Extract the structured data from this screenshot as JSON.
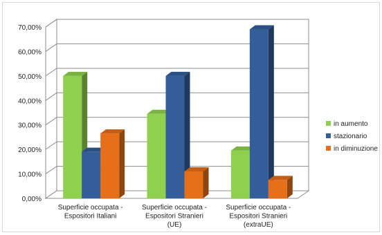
{
  "chart_data": {
    "type": "bar",
    "categories": [
      [
        "Superficie occupata -",
        "Espositori Italiani"
      ],
      [
        "Superficie occupata -",
        "Espositori Stranieri",
        "(UE)"
      ],
      [
        "Superficie occupata -",
        "Espositori Stranieri",
        "(extraUE)"
      ]
    ],
    "series": [
      {
        "name": "in aumento",
        "values": [
          50,
          34.5,
          19.5
        ],
        "color": "#8fd14f"
      },
      {
        "name": "stazionario",
        "values": [
          19,
          50,
          69
        ],
        "color": "#335e99"
      },
      {
        "name": "in diminuzione",
        "values": [
          26.5,
          11,
          7.5
        ],
        "color": "#e66f1a"
      }
    ],
    "ylim": [
      0,
      70
    ],
    "yticks": [
      "0,00%",
      "10,00%",
      "20,00%",
      "30,00%",
      "40,00%",
      "50,00%",
      "60,00%",
      "70,00%"
    ],
    "title": "",
    "xlabel": "",
    "ylabel": "",
    "legend_position": "right",
    "style": "3d-clustered-column"
  }
}
